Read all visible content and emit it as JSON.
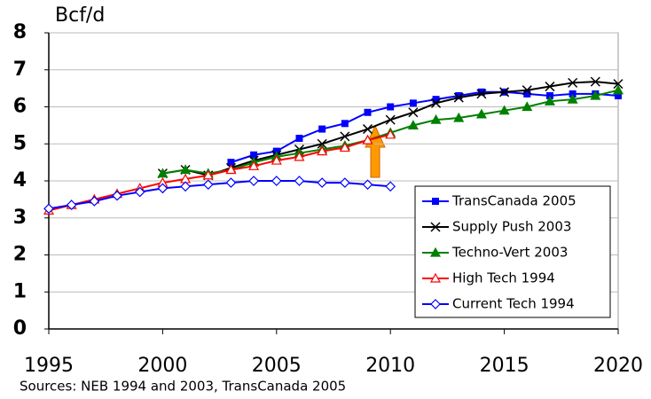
{
  "chart_data": {
    "type": "line",
    "y_label": "Bcf/d",
    "source": "Sources: NEB 1994 and 2003, TransCanada 2005",
    "x": [
      1995,
      1996,
      1997,
      1998,
      1999,
      2000,
      2001,
      2002,
      2003,
      2004,
      2005,
      2006,
      2007,
      2008,
      2009,
      2010,
      2011,
      2012,
      2013,
      2014,
      2015,
      2016,
      2017,
      2018,
      2019,
      2020
    ],
    "xlim": [
      1995,
      2020
    ],
    "xticks": [
      1995,
      2000,
      2005,
      2010,
      2015,
      2020
    ],
    "ylim": [
      0,
      8
    ],
    "yticks": [
      0,
      1,
      2,
      3,
      4,
      5,
      6,
      7,
      8
    ],
    "grid": true,
    "legend": "lower right",
    "series": [
      {
        "name": "TransCanada 2005",
        "color": "#0000ff",
        "marker": "square",
        "values": [
          null,
          null,
          null,
          null,
          null,
          null,
          null,
          null,
          4.5,
          4.7,
          4.8,
          5.15,
          5.4,
          5.55,
          5.85,
          6.0,
          6.1,
          6.2,
          6.3,
          6.4,
          6.4,
          6.35,
          6.3,
          6.35,
          6.35,
          6.3
        ]
      },
      {
        "name": "Supply Push 2003",
        "color": "#000000",
        "marker": "x",
        "values": [
          null,
          null,
          null,
          null,
          null,
          4.2,
          4.3,
          4.15,
          4.35,
          4.55,
          4.7,
          4.85,
          5.0,
          5.2,
          5.4,
          5.65,
          5.85,
          6.1,
          6.25,
          6.35,
          6.4,
          6.45,
          6.55,
          6.65,
          6.68,
          6.62
        ]
      },
      {
        "name": "Techno-Vert 2003",
        "color": "#008000",
        "marker": "triangle",
        "values": [
          null,
          null,
          null,
          null,
          null,
          4.2,
          4.3,
          4.2,
          4.3,
          4.5,
          4.65,
          4.75,
          4.85,
          4.95,
          5.1,
          5.3,
          5.5,
          5.65,
          5.7,
          5.8,
          5.9,
          6.0,
          6.15,
          6.2,
          6.3,
          6.45
        ]
      },
      {
        "name": "High Tech 1994",
        "color": "#ff0000",
        "marker": "triangle-open",
        "values": [
          3.2,
          3.35,
          3.5,
          3.65,
          3.8,
          3.95,
          4.05,
          4.15,
          4.3,
          4.4,
          4.55,
          4.65,
          4.8,
          4.9,
          5.1,
          5.25,
          null,
          null,
          null,
          null,
          null,
          null,
          null,
          null,
          null,
          null
        ]
      },
      {
        "name": "Current Tech 1994",
        "color": "#0000ff",
        "marker": "diamond-open",
        "values": [
          3.25,
          3.35,
          3.45,
          3.6,
          3.7,
          3.8,
          3.85,
          3.9,
          3.95,
          4.0,
          4.0,
          4.0,
          3.95,
          3.95,
          3.9,
          3.85,
          null,
          null,
          null,
          null,
          null,
          null,
          null,
          null,
          null,
          null
        ]
      }
    ]
  }
}
